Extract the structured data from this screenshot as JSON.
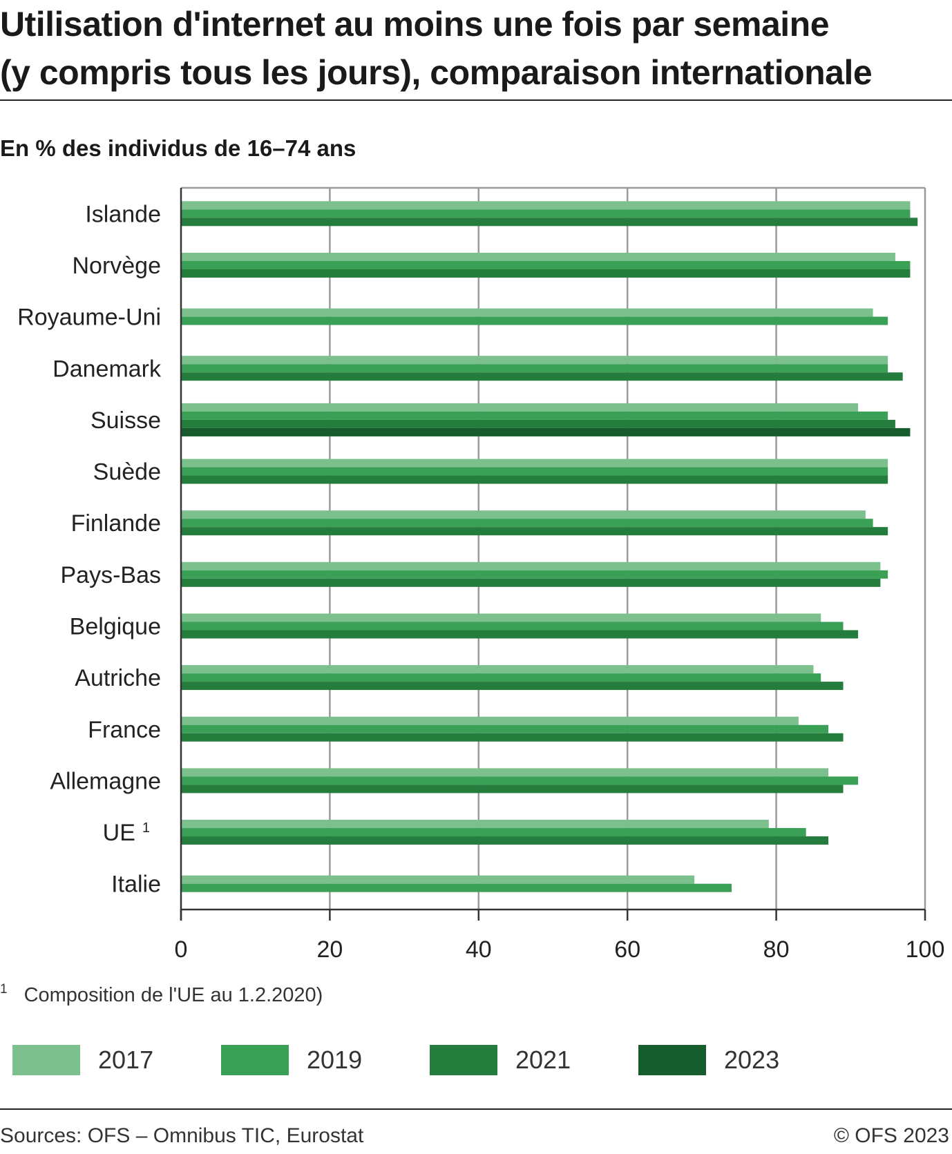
{
  "title": {
    "line1": "Utilisation d'internet au moins une fois par semaine",
    "line2": "(y compris tous les jours), comparaison internationale"
  },
  "subtitle": "En % des individus de 16–74 ans",
  "footnote": {
    "marker": "1",
    "text": "Composition de l'UE au 1.2.2020)"
  },
  "source": "Sources: OFS – Omnibus TIC, Eurostat",
  "copyright": "© OFS 2023",
  "colors": {
    "2017": "#7cc08d",
    "2019": "#3aa055",
    "2021": "#257d3d",
    "2023": "#165c2c",
    "grid": "#9a9a9a"
  },
  "chart_data": {
    "type": "bar",
    "orientation": "horizontal",
    "title": "Utilisation d'internet au moins une fois par semaine (y compris tous les jours), comparaison internationale",
    "subtitle": "En % des individus de 16–74 ans",
    "xlim": [
      0,
      100
    ],
    "xticks": [
      0,
      20,
      40,
      60,
      80,
      100
    ],
    "grid": true,
    "legend_position": "bottom",
    "categories": [
      "Islande",
      "Norvège",
      "Royaume-Uni",
      "Danemark",
      "Suisse",
      "Suède",
      "Finlande",
      "Pays-Bas",
      "Belgique",
      "Autriche",
      "France",
      "Allemagne",
      "UE",
      "Italie"
    ],
    "category_superscripts": {
      "UE": "1"
    },
    "series": [
      {
        "name": "2017",
        "color": "#7cc08d",
        "values": [
          98,
          96,
          93,
          95,
          91,
          95,
          92,
          94,
          86,
          85,
          83,
          87,
          79,
          69
        ]
      },
      {
        "name": "2019",
        "color": "#3aa055",
        "values": [
          98,
          98,
          95,
          95,
          95,
          95,
          93,
          95,
          89,
          86,
          87,
          91,
          84,
          74
        ]
      },
      {
        "name": "2021",
        "color": "#257d3d",
        "values": [
          99,
          98,
          null,
          97,
          96,
          95,
          95,
          94,
          91,
          89,
          89,
          89,
          87,
          null
        ]
      },
      {
        "name": "2023",
        "color": "#165c2c",
        "values": [
          null,
          null,
          null,
          null,
          98,
          null,
          null,
          null,
          null,
          null,
          null,
          null,
          null,
          null
        ]
      }
    ]
  }
}
